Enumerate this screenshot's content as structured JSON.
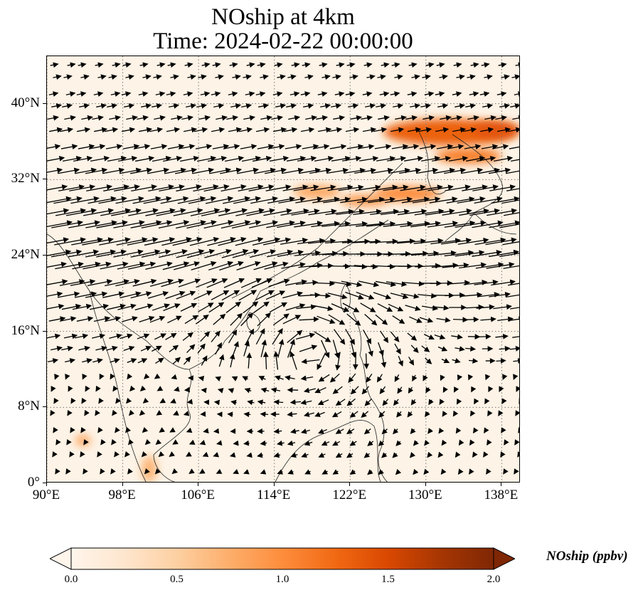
{
  "title": {
    "line1": "NOship at 4km",
    "line2": "Time: 2024-02-22 00:00:00"
  },
  "map": {
    "lon_range": [
      90,
      140
    ],
    "lat_range": [
      0,
      45
    ],
    "lat_ticks": [
      {
        "value": 0,
        "label": "0°"
      },
      {
        "value": 8,
        "label": "8°N"
      },
      {
        "value": 16,
        "label": "16°N"
      },
      {
        "value": 24,
        "label": "24°N"
      },
      {
        "value": 32,
        "label": "32°N"
      },
      {
        "value": 40,
        "label": "40°N"
      }
    ],
    "lon_ticks": [
      {
        "value": 90,
        "label": "90°E"
      },
      {
        "value": 98,
        "label": "98°E"
      },
      {
        "value": 106,
        "label": "106°E"
      },
      {
        "value": 114,
        "label": "114°E"
      },
      {
        "value": 122,
        "label": "122°E"
      },
      {
        "value": 130,
        "label": "130°E"
      },
      {
        "value": 138,
        "label": "138°E"
      }
    ],
    "ocean_color": "#fdf3e6",
    "plumes": [
      {
        "lon": 132.5,
        "lat": 37.0,
        "rlon": 7.0,
        "rlat": 1.4,
        "value": 1.3
      },
      {
        "lon": 137.5,
        "lat": 37.2,
        "rlon": 2.5,
        "rlat": 0.9,
        "value": 1.4
      },
      {
        "lon": 134.5,
        "lat": 34.5,
        "rlon": 3.5,
        "rlat": 0.8,
        "value": 1.1
      },
      {
        "lon": 128.0,
        "lat": 30.5,
        "rlon": 3.5,
        "rlat": 0.8,
        "value": 1.0
      },
      {
        "lon": 123.5,
        "lat": 29.8,
        "rlon": 2.5,
        "rlat": 0.6,
        "value": 0.9
      },
      {
        "lon": 118.5,
        "lat": 30.7,
        "rlon": 2.5,
        "rlat": 0.7,
        "value": 0.8
      },
      {
        "lon": 93.8,
        "lat": 4.5,
        "rlon": 0.8,
        "rlat": 0.6,
        "value": 0.8
      },
      {
        "lon": 100.8,
        "lat": 1.5,
        "rlon": 0.8,
        "rlat": 1.4,
        "value": 0.7
      }
    ]
  },
  "colorbar": {
    "min": 0.0,
    "max": 2.0,
    "labels": [
      "0.0",
      "0.5",
      "1.0",
      "1.5",
      "2.0"
    ],
    "title": "NOship (ppbv)",
    "colors": [
      "#fff5eb",
      "#fee6ce",
      "#fdd0a2",
      "#fdae6b",
      "#fd8d3c",
      "#f16913",
      "#d94801",
      "#a63603",
      "#7f2704"
    ]
  }
}
